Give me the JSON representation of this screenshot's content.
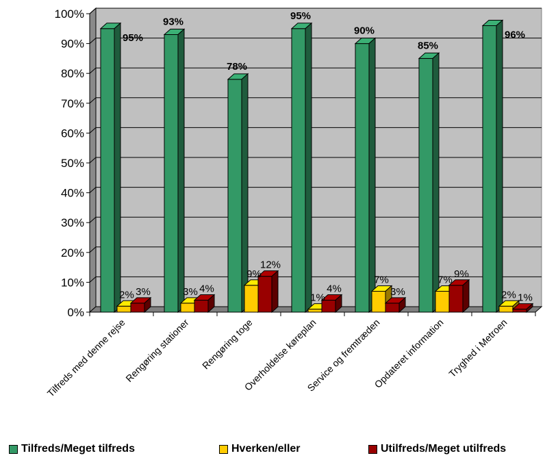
{
  "chart_data": {
    "type": "bar",
    "categories": [
      "Tilfreds med denne rejse",
      "Rengøring stationer",
      "Rengøring toge",
      "Overholdelse køreplan",
      "Service og fremtræden",
      "Opdateret information",
      "Tryghed i Metroen"
    ],
    "series": [
      {
        "name": "Tilfreds/Meget tilfreds",
        "color": "#339966",
        "values": [
          95,
          93,
          78,
          95,
          90,
          85,
          96
        ],
        "labels": [
          "95%",
          "93%",
          "78%",
          "95%",
          "90%",
          "85%",
          "96%"
        ]
      },
      {
        "name": "Hverken/eller",
        "color": "#FFCC00",
        "values": [
          2,
          3,
          9,
          1,
          7,
          7,
          2
        ],
        "labels": [
          "2%",
          "3%",
          "9%",
          "1%",
          "7%",
          "7%",
          "2%"
        ]
      },
      {
        "name": "Utilfreds/Meget utilfreds",
        "color": "#990000",
        "values": [
          3,
          4,
          12,
          4,
          3,
          9,
          1
        ],
        "labels": [
          "3%",
          "4%",
          "12%",
          "4%",
          "3%",
          "9%",
          "1%"
        ]
      }
    ],
    "yticks": [
      "0%",
      "10%",
      "20%",
      "30%",
      "40%",
      "50%",
      "60%",
      "70%",
      "80%",
      "90%",
      "100%"
    ],
    "ylim": [
      0,
      100
    ],
    "grid": true,
    "legend_position": "bottom",
    "three_d": true
  }
}
